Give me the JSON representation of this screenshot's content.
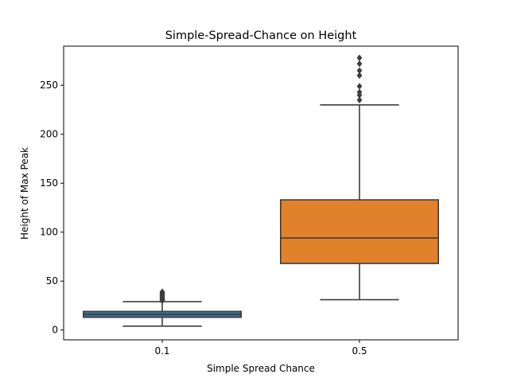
{
  "chart_data": {
    "type": "box",
    "title": "Simple-Spread-Chance on Height",
    "xlabel": "Simple Spread Chance",
    "ylabel": "Height of Max Peak",
    "categories": [
      "0.1",
      "0.5"
    ],
    "ylim": [
      -10,
      290
    ],
    "yticks": [
      0,
      50,
      100,
      150,
      200,
      250
    ],
    "grid": false,
    "series": [
      {
        "category": "0.1",
        "color": "#3a6f99",
        "whisker_low": 4,
        "q1": 13,
        "median": 16,
        "q3": 19,
        "whisker_high": 29,
        "outliers": [
          30,
          31,
          32,
          33,
          34,
          35,
          36,
          37,
          38,
          39
        ]
      },
      {
        "category": "0.5",
        "color": "#e1812c",
        "whisker_low": 31,
        "q1": 68,
        "median": 94,
        "q3": 133,
        "whisker_high": 230,
        "outliers": [
          235,
          240,
          243,
          249,
          260,
          265,
          272,
          278
        ]
      }
    ]
  }
}
